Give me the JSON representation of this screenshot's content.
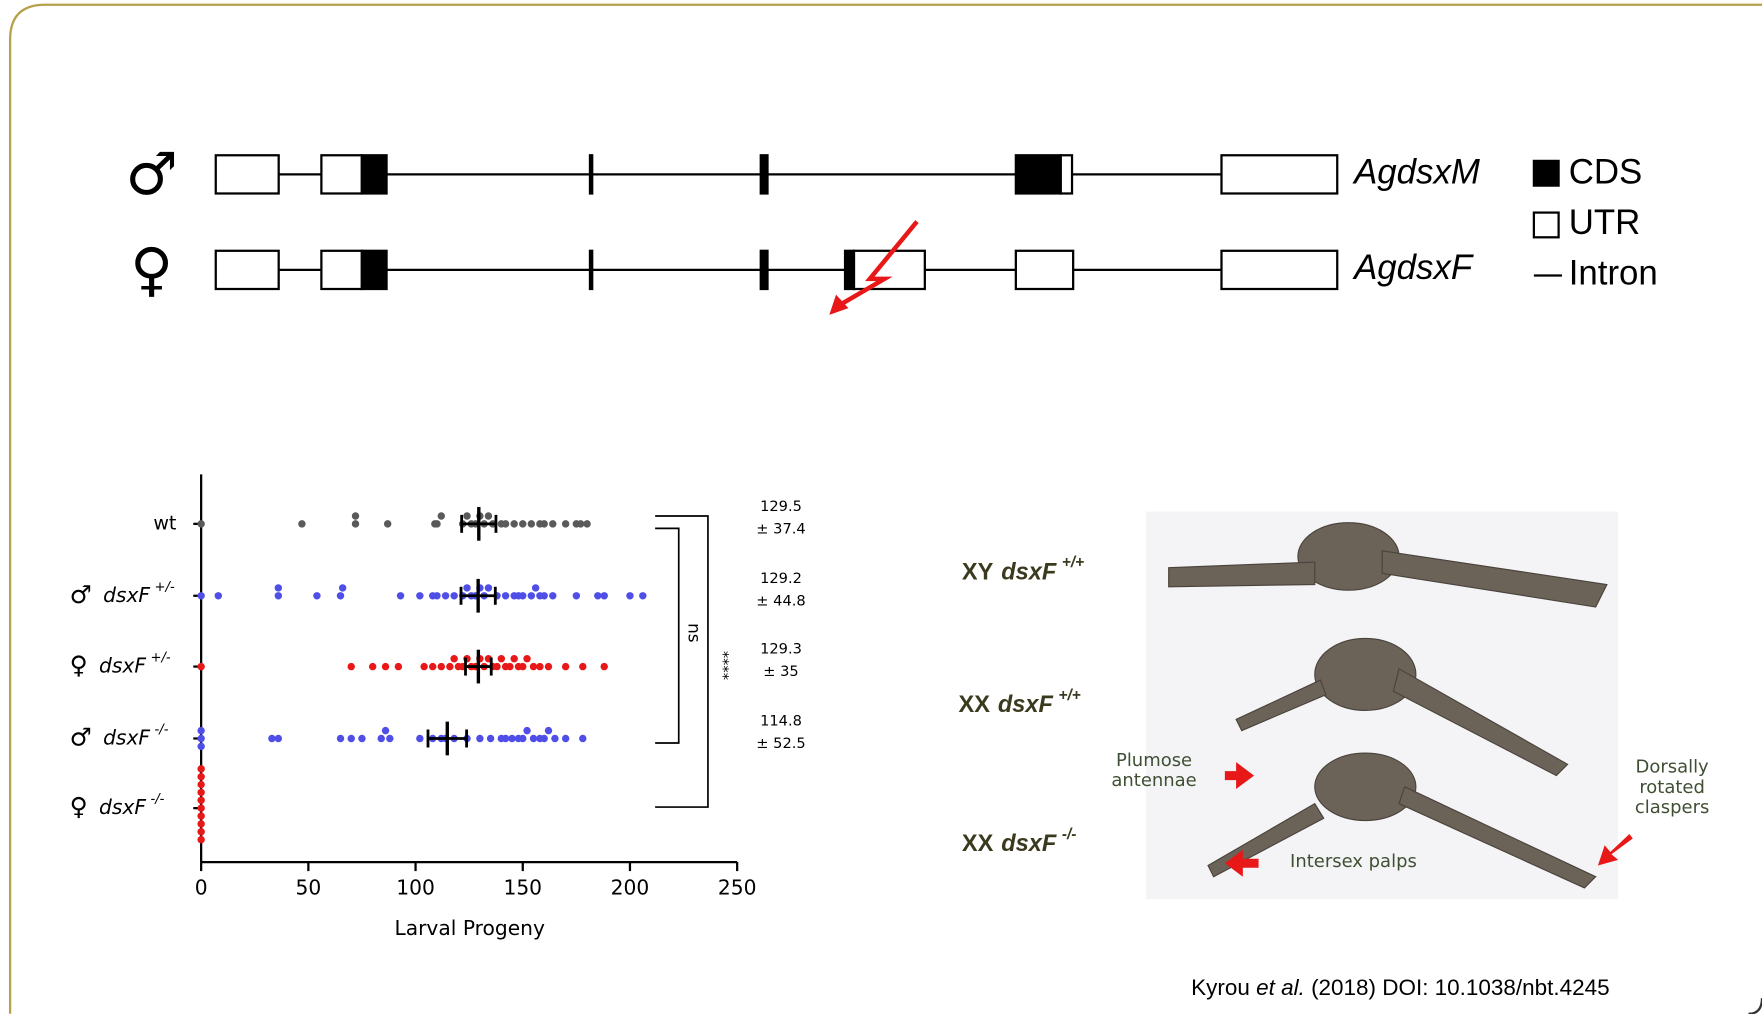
{
  "gene_diagram": {
    "male_symbol": "♂",
    "female_symbol": "♀",
    "male_transcript": "AgdsxM",
    "female_transcript": "AgdsxF",
    "legend": [
      "CDS",
      "UTR",
      "Intron"
    ]
  },
  "chart_data": {
    "type": "strip",
    "xlabel": "Larval Progeny",
    "xlim": [
      0,
      250
    ],
    "xticks": [
      0,
      50,
      100,
      150,
      200,
      250
    ],
    "groups": [
      {
        "label": "wt",
        "color": "#5a5a5a",
        "values": [
          0,
          47,
          72,
          72,
          87,
          109,
          110,
          112,
          122,
          124,
          126,
          128,
          130,
          132,
          134,
          136,
          140,
          142,
          146,
          150,
          154,
          158,
          160,
          164,
          170,
          175,
          177,
          180
        ],
        "mean": 129.5,
        "error": 8,
        "sd": 37.4,
        "sd_label": "± 37.4"
      },
      {
        "sex": "♂",
        "genotype": "dsxF",
        "allele": "+/-",
        "color": "#4f4fe8",
        "values": [
          0,
          8,
          36,
          36,
          54,
          65,
          66,
          93,
          102,
          108,
          110,
          114,
          118,
          122,
          124,
          126,
          128,
          130,
          132,
          134,
          138,
          142,
          146,
          148,
          150,
          154,
          156,
          158,
          160,
          164,
          175,
          185,
          188,
          200,
          206
        ],
        "mean": 129.2,
        "error": 8,
        "sd": 44.8,
        "sd_label": "± 44.8"
      },
      {
        "sex": "♀",
        "genotype": "dsxF",
        "allele": "+/-",
        "color": "#e81818",
        "values": [
          0,
          70,
          80,
          86,
          92,
          104,
          108,
          112,
          116,
          118,
          120,
          122,
          124,
          126,
          128,
          130,
          132,
          134,
          136,
          138,
          140,
          142,
          144,
          146,
          148,
          150,
          152,
          155,
          158,
          162,
          170,
          178,
          188
        ],
        "mean": 129.3,
        "error": 6,
        "sd": 35,
        "sd_label": "± 35"
      },
      {
        "sex": "♂",
        "genotype": "dsxF",
        "allele": "-/-",
        "color": "#4f4fe8",
        "values": [
          0,
          0,
          0,
          33,
          36,
          65,
          70,
          75,
          84,
          86,
          88,
          102,
          108,
          112,
          114,
          118,
          124,
          130,
          135,
          140,
          142,
          145,
          148,
          150,
          152,
          155,
          158,
          160,
          162,
          165,
          170,
          178
        ],
        "mean": 114.8,
        "error": 9,
        "sd": 52.5,
        "sd_label": "± 52.5"
      },
      {
        "sex": "♀",
        "genotype": "dsxF",
        "allele": "-/-",
        "color": "#e81818",
        "values": [
          0,
          0,
          0,
          0,
          0,
          0,
          0,
          0,
          0,
          0
        ]
      }
    ],
    "significance": [
      "ns",
      "****"
    ]
  },
  "photo": {
    "labels": [
      {
        "prefix": "XY",
        "gene": "dsxF",
        "allele": "+/+"
      },
      {
        "prefix": "XX",
        "gene": "dsxF",
        "allele": "+/+"
      },
      {
        "prefix": "XX",
        "gene": "dsxF",
        "allele": "-/-"
      }
    ],
    "annotations": [
      [
        "Plumose",
        "antennae"
      ],
      [
        "Intersex palps"
      ],
      [
        "Dorsally",
        "rotated",
        "claspers"
      ]
    ]
  },
  "citation": {
    "author": "Kyrou",
    "etal": "et al.",
    "rest": "(2018) DOI: 10.1038/nbt.4245"
  }
}
